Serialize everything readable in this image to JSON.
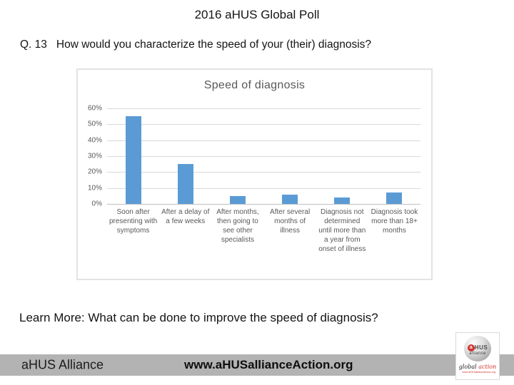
{
  "slide": {
    "title": "2016 aHUS Global Poll",
    "question_label": "Q. 13",
    "question_text": "How would you characterize the speed of your (their) diagnosis?",
    "learn_more": "Learn More: What can be done to improve the speed of diagnosis?"
  },
  "chart_data": {
    "type": "bar",
    "title": "Speed of diagnosis",
    "categories": [
      "Soon after presenting with symptoms",
      "After a delay of a few weeks",
      "After months, then going to see other specialists",
      "After several months of illness",
      "Diagnosis not determined until more than a year from onset of illness",
      "Diagnosis took more than 18+ months"
    ],
    "values": [
      55,
      25,
      5,
      6,
      4,
      7
    ],
    "unit": "%",
    "xlabel": "",
    "ylabel": "",
    "ylim": [
      0,
      60
    ],
    "y_ticks": [
      "60%",
      "50%",
      "40%",
      "30%",
      "20%",
      "10%",
      "0%"
    ],
    "grid": true,
    "legend": false,
    "bar_color": "#5B9BD5",
    "gridline_color": "#D9D9D9",
    "axis_text_color": "#595959"
  },
  "footer": {
    "org_name": "aHUS Alliance",
    "website": "www.aHUSallianceAction.org",
    "bar_color": "#B3B3B3"
  },
  "logo": {
    "brand_a": "a",
    "brand_rest": "HUS",
    "brand_sub": "alliance",
    "tagline_word1": "global",
    "tagline_word2": "action",
    "tagline_url": "www.aHUSallianceAction.org",
    "accent_red": "#D0342C"
  }
}
